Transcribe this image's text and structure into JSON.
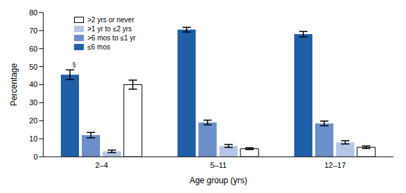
{
  "chart_data": {
    "type": "bar",
    "x_label": "Age group (yrs)",
    "y_label": "Percentage",
    "categories": [
      "2–4",
      "5–11",
      "12–17"
    ],
    "series": [
      {
        "name": "≤6 mos",
        "color": "#1f5fa8",
        "values": [
          45.5,
          70.5,
          68
        ],
        "errors": [
          2.7,
          1.3,
          1.5
        ]
      },
      {
        "name": ">6 mos to ≤1 yr",
        "color": "#6b8fc9",
        "values": [
          12,
          19,
          18.5
        ],
        "errors": [
          1.5,
          1.3,
          1.3
        ]
      },
      {
        "name": ">1 yr to ≤2 yrs",
        "color": "#b4c6e7",
        "values": [
          3,
          6,
          8
        ],
        "errors": [
          0.7,
          0.8,
          0.9
        ]
      },
      {
        "name": ">2 yrs or never",
        "color": "#ffffff",
        "values": [
          40,
          4.5,
          5.3
        ],
        "errors": [
          2.5,
          0.5,
          0.7
        ]
      }
    ],
    "ylim": [
      0,
      80
    ],
    "yticks": [
      0,
      10,
      20,
      30,
      40,
      50,
      60,
      70,
      80
    ],
    "grid": false,
    "legend": "upper left",
    "annotations": [
      {
        "text": "§",
        "category": "2–4",
        "series": "≤6 mos"
      }
    ]
  }
}
